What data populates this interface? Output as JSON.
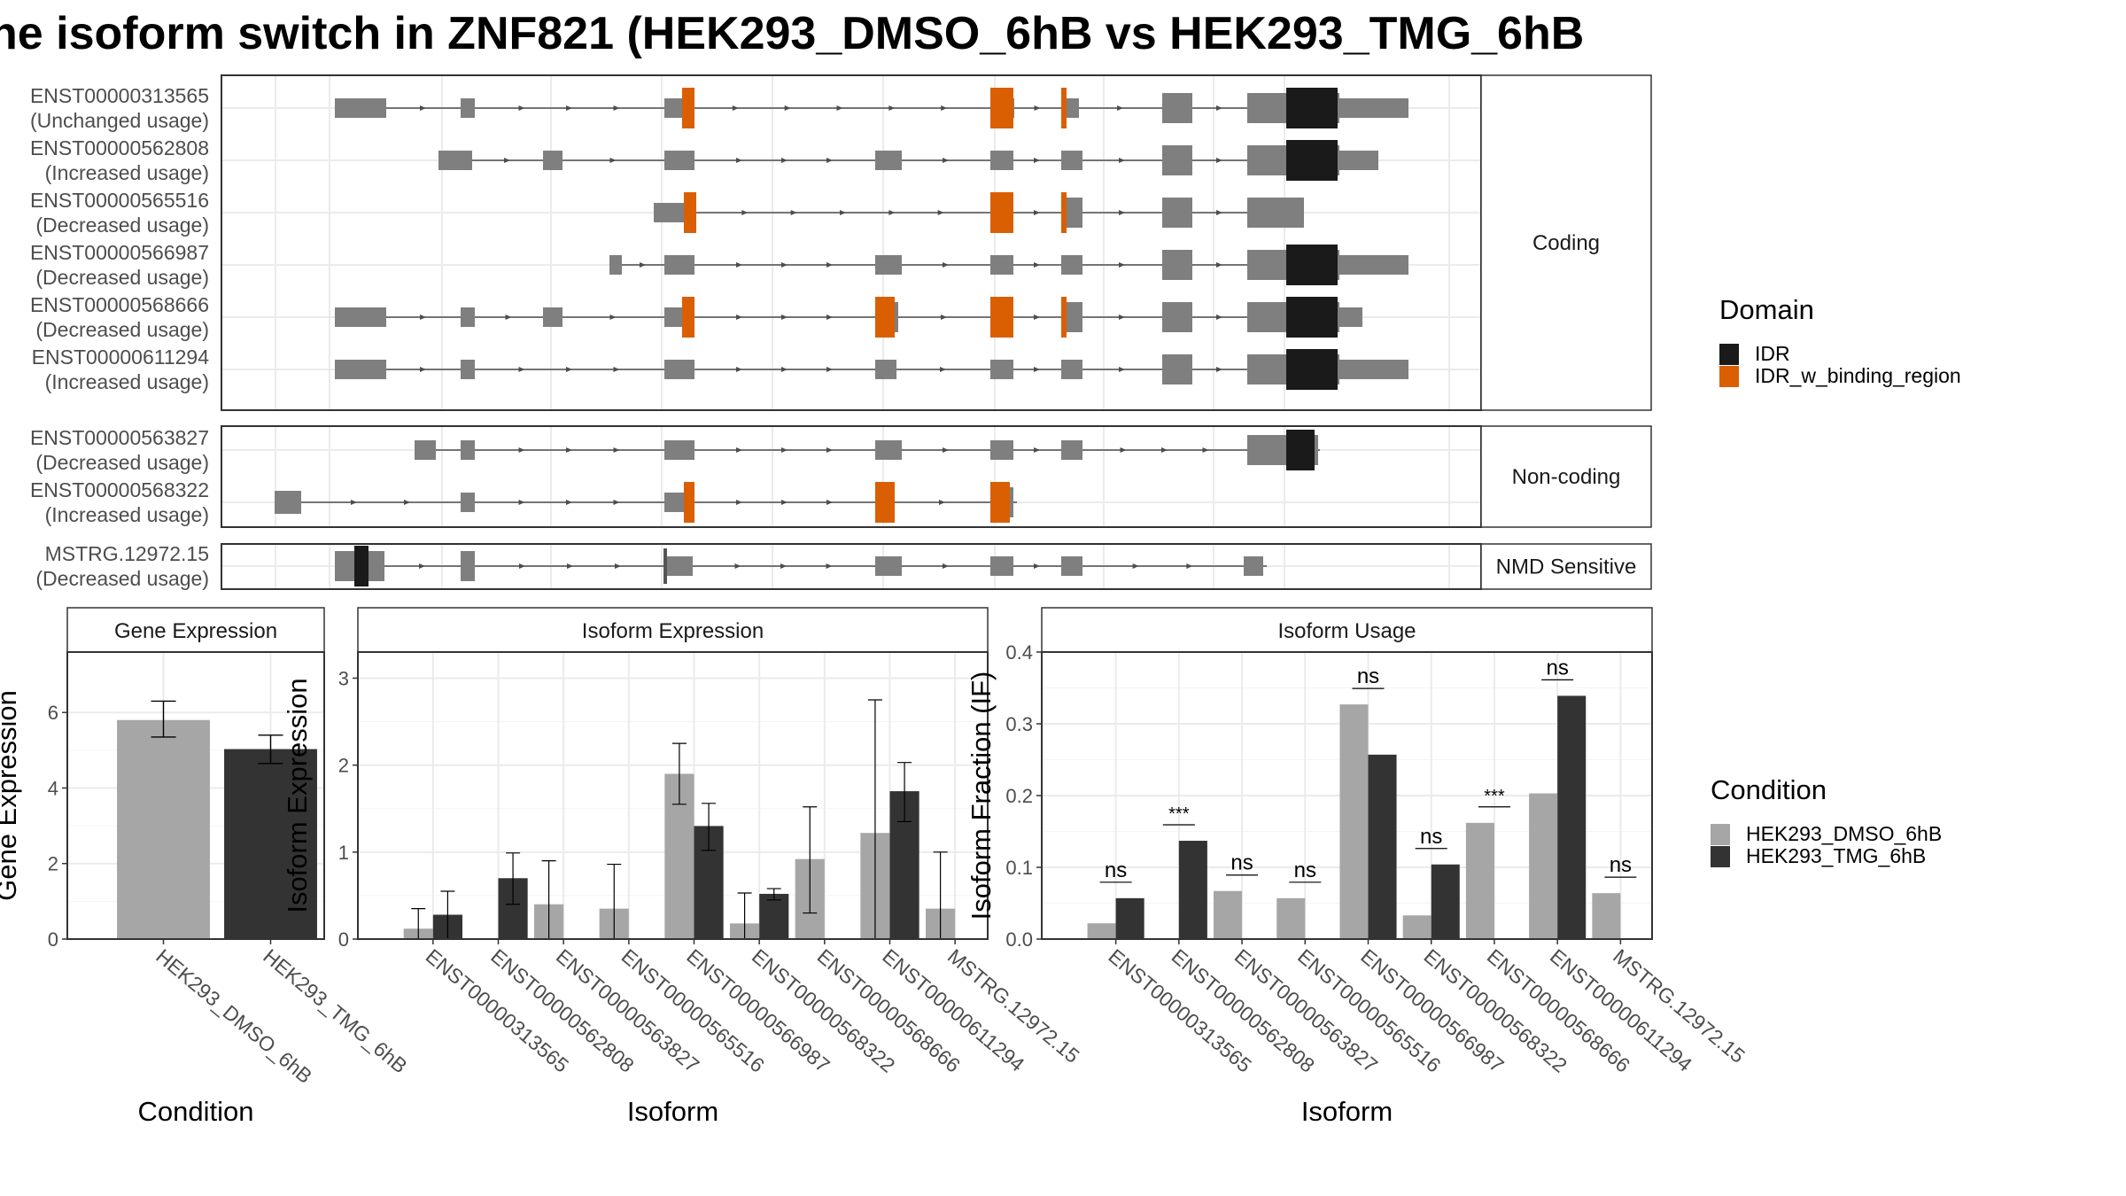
{
  "title": "he isoform switch in ZNF821 (HEK293_DMSO_6hB vs HEK293_TMG_6hB",
  "colors": {
    "exon": "#7f7f7f",
    "idr": "#1a1a1a",
    "idr_binding": "#d95f02",
    "dmso": "#a6a6a6",
    "tmg": "#333333",
    "grid": "#ebebeb",
    "border": "#333333"
  },
  "structure_panels": [
    {
      "strip": "Coding",
      "tracks": [
        {
          "name": "ENST00000313565",
          "usage": "(Unchanged usage)"
        },
        {
          "name": "ENST00000562808",
          "usage": "(Increased usage)"
        },
        {
          "name": "ENST00000565516",
          "usage": "(Decreased usage)"
        },
        {
          "name": "ENST00000566987",
          "usage": "(Decreased usage)"
        },
        {
          "name": "ENST00000568666",
          "usage": "(Decreased usage)"
        },
        {
          "name": "ENST00000611294",
          "usage": "(Increased usage)"
        }
      ]
    },
    {
      "strip": "Non-coding",
      "tracks": [
        {
          "name": "ENST00000563827",
          "usage": "(Decreased usage)"
        },
        {
          "name": "ENST00000568322",
          "usage": "(Increased usage)"
        }
      ]
    },
    {
      "strip": "NMD Sensitive",
      "tracks": [
        {
          "name": "MSTRG.12972.15",
          "usage": "(Decreased usage)"
        }
      ]
    }
  ],
  "domain_legend": {
    "title": "Domain",
    "items": [
      {
        "label": "IDR",
        "color": "#1a1a1a"
      },
      {
        "label": "IDR_w_binding_region",
        "color": "#d95f02"
      }
    ]
  },
  "condition_legend": {
    "title": "Condition",
    "items": [
      {
        "label": "HEK293_DMSO_6hB",
        "color": "#a6a6a6"
      },
      {
        "label": "HEK293_TMG_6hB",
        "color": "#333333"
      }
    ]
  },
  "chart_data": [
    {
      "type": "bar",
      "title": "Gene Expression",
      "xlabel": "Condition",
      "ylabel": "Gene Expression",
      "ylim": [
        0,
        7.6
      ],
      "yticks": [
        0,
        2,
        4,
        6
      ],
      "categories": [
        "HEK293_DMSO_6hB",
        "HEK293_TMG_6hB"
      ],
      "values": [
        5.8,
        5.03
      ],
      "errors": [
        [
          5.35,
          6.3
        ],
        [
          4.65,
          5.4
        ]
      ]
    },
    {
      "type": "bar",
      "title": "Isoform Expression",
      "xlabel": "Isoform",
      "ylabel": "Isoform Expression",
      "ylim": [
        0,
        3.3
      ],
      "yticks": [
        0,
        1,
        2,
        3
      ],
      "categories": [
        "ENST00000313565",
        "ENST00000562808",
        "ENST00000563827",
        "ENST00000565516",
        "ENST00000566987",
        "ENST00000568322",
        "ENST00000568666",
        "ENST00000611294",
        "MSTRG.12972.15"
      ],
      "series": [
        {
          "name": "HEK293_DMSO_6hB",
          "values": [
            0.12,
            0.0,
            0.4,
            0.35,
            1.9,
            0.18,
            0.92,
            1.22,
            0.35
          ],
          "errors": [
            [
              0.0,
              0.35
            ],
            null,
            [
              0.0,
              0.9
            ],
            [
              0.0,
              0.86
            ],
            [
              1.55,
              2.25
            ],
            [
              0.0,
              0.53
            ],
            [
              0.3,
              1.52
            ],
            [
              0.0,
              2.75
            ],
            [
              0.0,
              1.0
            ]
          ]
        },
        {
          "name": "HEK293_TMG_6hB",
          "values": [
            0.28,
            0.7,
            0.0,
            0.0,
            1.3,
            0.52,
            0.0,
            1.7,
            0.0
          ],
          "errors": [
            [
              0.0,
              0.55
            ],
            [
              0.4,
              0.99
            ],
            null,
            null,
            [
              1.02,
              1.56
            ],
            [
              0.45,
              0.58
            ],
            null,
            [
              1.35,
              2.03
            ],
            null
          ]
        }
      ]
    },
    {
      "type": "bar",
      "title": "Isoform Usage",
      "xlabel": "Isoform",
      "ylabel": "Isoform Fraction (IF)",
      "ylim": [
        0,
        0.4
      ],
      "yticks": [
        0.0,
        0.1,
        0.2,
        0.3,
        0.4
      ],
      "categories": [
        "ENST00000313565",
        "ENST00000562808",
        "ENST00000563827",
        "ENST00000565516",
        "ENST00000566987",
        "ENST00000568322",
        "ENST00000568666",
        "ENST00000611294",
        "MSTRG.12972.15"
      ],
      "series": [
        {
          "name": "HEK293_DMSO_6hB",
          "values": [
            0.022,
            0.0,
            0.067,
            0.057,
            0.327,
            0.033,
            0.162,
            0.203,
            0.064
          ]
        },
        {
          "name": "HEK293_TMG_6hB",
          "values": [
            0.057,
            0.137,
            0.0,
            0.0,
            0.257,
            0.104,
            0.0,
            0.339,
            0.0
          ]
        }
      ],
      "significance": [
        "ns",
        "***",
        "ns",
        "ns",
        "ns",
        "ns",
        "***",
        "ns",
        "ns"
      ]
    }
  ]
}
